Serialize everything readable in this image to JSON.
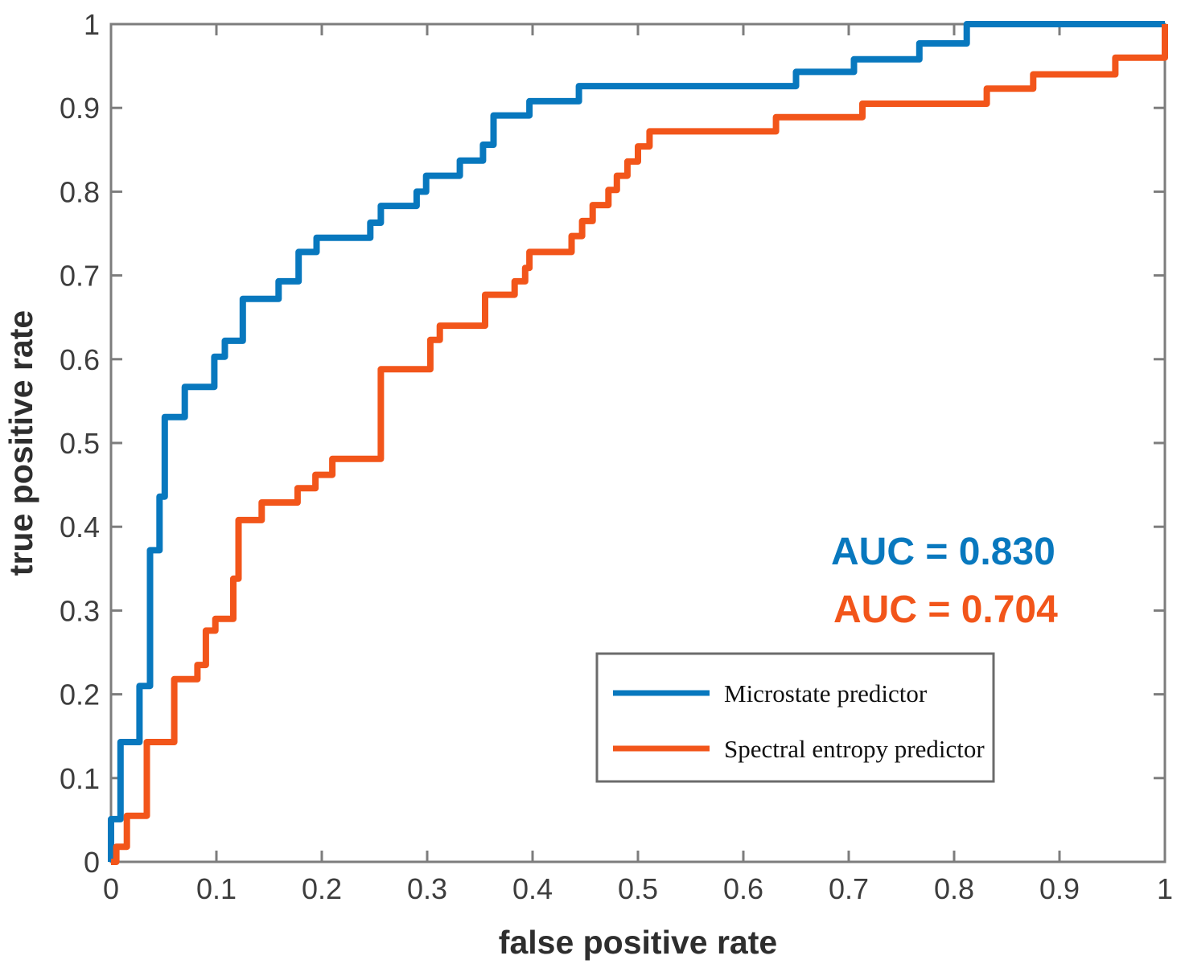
{
  "chart_data": {
    "type": "line",
    "subtype": "roc-step-curves",
    "title": "",
    "xlabel": "false positive rate",
    "ylabel": "true positive rate",
    "xlim": [
      0,
      1
    ],
    "ylim": [
      0,
      1
    ],
    "grid": false,
    "plot_bg": "#ffffff",
    "axis_color": "#7d7d7d",
    "tick_label_color": "#3d3d3d",
    "legend_position": "lower right",
    "x_ticks": [
      0,
      0.1,
      0.2,
      0.3,
      0.4,
      0.5,
      0.6,
      0.7,
      0.8,
      0.9,
      1
    ],
    "x_tick_labels": [
      "0",
      "0.1",
      "0.2",
      "0.3",
      "0.4",
      "0.5",
      "0.6",
      "0.7",
      "0.8",
      "0.9",
      "1"
    ],
    "y_ticks": [
      0,
      0.1,
      0.2,
      0.3,
      0.4,
      0.5,
      0.6,
      0.7,
      0.8,
      0.9,
      1
    ],
    "y_tick_labels": [
      "0",
      "0.1",
      "0.2",
      "0.3",
      "0.4",
      "0.5",
      "0.6",
      "0.7",
      "0.8",
      "0.9",
      "1"
    ],
    "series": [
      {
        "name": "Microstate predictor",
        "color": "#0878BE",
        "auc": 0.83,
        "points": [
          [
            0,
            0
          ],
          [
            0,
            0.051
          ],
          [
            0.009,
            0.051
          ],
          [
            0.009,
            0.143
          ],
          [
            0.027,
            0.143
          ],
          [
            0.027,
            0.21
          ],
          [
            0.037,
            0.21
          ],
          [
            0.037,
            0.372
          ],
          [
            0.046,
            0.372
          ],
          [
            0.046,
            0.436
          ],
          [
            0.051,
            0.436
          ],
          [
            0.051,
            0.531
          ],
          [
            0.07,
            0.531
          ],
          [
            0.07,
            0.567
          ],
          [
            0.098,
            0.567
          ],
          [
            0.098,
            0.603
          ],
          [
            0.108,
            0.603
          ],
          [
            0.108,
            0.622
          ],
          [
            0.125,
            0.622
          ],
          [
            0.125,
            0.672
          ],
          [
            0.159,
            0.672
          ],
          [
            0.159,
            0.693
          ],
          [
            0.178,
            0.693
          ],
          [
            0.178,
            0.728
          ],
          [
            0.195,
            0.728
          ],
          [
            0.195,
            0.745
          ],
          [
            0.246,
            0.745
          ],
          [
            0.246,
            0.763
          ],
          [
            0.256,
            0.763
          ],
          [
            0.256,
            0.783
          ],
          [
            0.29,
            0.783
          ],
          [
            0.29,
            0.8
          ],
          [
            0.299,
            0.8
          ],
          [
            0.299,
            0.819
          ],
          [
            0.331,
            0.819
          ],
          [
            0.331,
            0.837
          ],
          [
            0.353,
            0.837
          ],
          [
            0.353,
            0.856
          ],
          [
            0.363,
            0.856
          ],
          [
            0.363,
            0.891
          ],
          [
            0.397,
            0.891
          ],
          [
            0.397,
            0.908
          ],
          [
            0.444,
            0.908
          ],
          [
            0.444,
            0.926
          ],
          [
            0.65,
            0.926
          ],
          [
            0.65,
            0.943
          ],
          [
            0.705,
            0.943
          ],
          [
            0.705,
            0.958
          ],
          [
            0.767,
            0.958
          ],
          [
            0.767,
            0.977
          ],
          [
            0.812,
            0.977
          ],
          [
            0.812,
            1
          ],
          [
            1,
            1
          ]
        ]
      },
      {
        "name": "Spectral entropy predictor",
        "color": "#F2551A",
        "auc": 0.704,
        "points": [
          [
            0,
            0
          ],
          [
            0.005,
            0
          ],
          [
            0.005,
            0.018
          ],
          [
            0.015,
            0.018
          ],
          [
            0.015,
            0.055
          ],
          [
            0.034,
            0.055
          ],
          [
            0.034,
            0.143
          ],
          [
            0.06,
            0.143
          ],
          [
            0.06,
            0.218
          ],
          [
            0.082,
            0.218
          ],
          [
            0.082,
            0.235
          ],
          [
            0.09,
            0.235
          ],
          [
            0.09,
            0.276
          ],
          [
            0.099,
            0.276
          ],
          [
            0.099,
            0.29
          ],
          [
            0.116,
            0.29
          ],
          [
            0.116,
            0.338
          ],
          [
            0.121,
            0.338
          ],
          [
            0.121,
            0.408
          ],
          [
            0.143,
            0.408
          ],
          [
            0.143,
            0.429
          ],
          [
            0.177,
            0.429
          ],
          [
            0.177,
            0.446
          ],
          [
            0.194,
            0.446
          ],
          [
            0.194,
            0.462
          ],
          [
            0.21,
            0.462
          ],
          [
            0.21,
            0.481
          ],
          [
            0.256,
            0.481
          ],
          [
            0.256,
            0.588
          ],
          [
            0.303,
            0.588
          ],
          [
            0.303,
            0.623
          ],
          [
            0.312,
            0.623
          ],
          [
            0.312,
            0.64
          ],
          [
            0.355,
            0.64
          ],
          [
            0.355,
            0.677
          ],
          [
            0.383,
            0.677
          ],
          [
            0.383,
            0.693
          ],
          [
            0.393,
            0.693
          ],
          [
            0.393,
            0.709
          ],
          [
            0.397,
            0.709
          ],
          [
            0.397,
            0.728
          ],
          [
            0.437,
            0.728
          ],
          [
            0.437,
            0.747
          ],
          [
            0.447,
            0.747
          ],
          [
            0.447,
            0.765
          ],
          [
            0.457,
            0.765
          ],
          [
            0.457,
            0.784
          ],
          [
            0.472,
            0.784
          ],
          [
            0.472,
            0.802
          ],
          [
            0.48,
            0.802
          ],
          [
            0.48,
            0.819
          ],
          [
            0.49,
            0.819
          ],
          [
            0.49,
            0.836
          ],
          [
            0.5,
            0.836
          ],
          [
            0.5,
            0.854
          ],
          [
            0.511,
            0.854
          ],
          [
            0.511,
            0.872
          ],
          [
            0.631,
            0.872
          ],
          [
            0.631,
            0.889
          ],
          [
            0.713,
            0.889
          ],
          [
            0.713,
            0.905
          ],
          [
            0.831,
            0.905
          ],
          [
            0.831,
            0.923
          ],
          [
            0.875,
            0.923
          ],
          [
            0.875,
            0.94
          ],
          [
            0.953,
            0.94
          ],
          [
            0.953,
            0.96
          ],
          [
            1,
            0.96
          ],
          [
            1,
            1
          ]
        ]
      }
    ],
    "annotations": [
      {
        "text": "AUC = 0.830",
        "color": "#0878BE"
      },
      {
        "text": "AUC = 0.704",
        "color": "#F2551A"
      }
    ]
  },
  "legend": {
    "border_color": "#6b6b6b",
    "items": [
      {
        "label": "Microstate predictor",
        "color": "#0878BE"
      },
      {
        "label": "Spectral entropy predictor",
        "color": "#F2551A"
      }
    ]
  }
}
